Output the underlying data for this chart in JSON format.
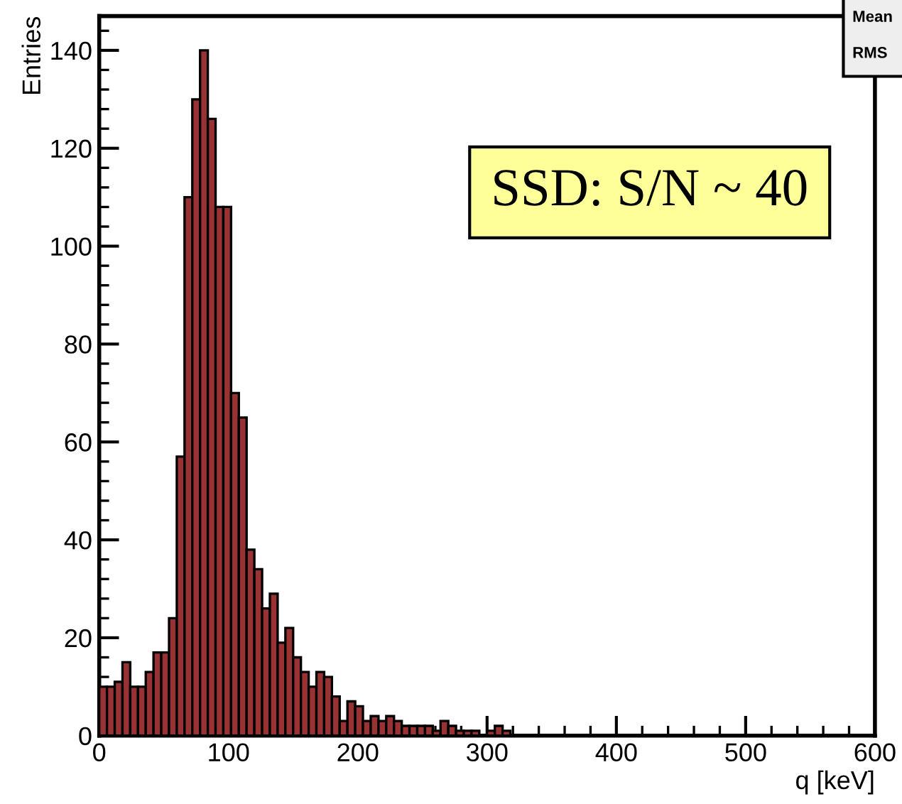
{
  "chart_data": {
    "type": "histogram",
    "xlabel": "q [keV]",
    "ylabel": "Entries",
    "bins": [
      0,
      6,
      12,
      18,
      24,
      30,
      36,
      42,
      48,
      54,
      60,
      66,
      72,
      78,
      84,
      90,
      96,
      102,
      108,
      114,
      120,
      126,
      132,
      138,
      144,
      150,
      156,
      162,
      168,
      174,
      180,
      186,
      192,
      198,
      204,
      210,
      216,
      222,
      228,
      234,
      240,
      246,
      252,
      258,
      264,
      270,
      276,
      282,
      288,
      294,
      300,
      306,
      312,
      318
    ],
    "values": [
      10,
      10,
      11,
      15,
      10,
      10,
      13,
      17,
      17,
      24,
      57,
      110,
      130,
      140,
      126,
      108,
      108,
      70,
      65,
      38,
      34,
      26,
      29,
      19,
      22,
      16,
      13,
      10,
      13,
      12,
      8,
      3,
      7,
      6,
      3,
      4,
      3,
      4,
      3,
      2,
      2,
      2,
      2,
      1,
      3,
      2,
      1,
      1,
      1,
      0,
      1,
      2,
      1
    ],
    "color": "#993333",
    "xlim": [
      0,
      600
    ],
    "xticks": [
      0,
      100,
      200,
      300,
      400,
      500,
      600
    ],
    "ylim": [
      0,
      147
    ],
    "yticks": [
      0,
      20,
      40,
      60,
      80,
      100,
      120,
      140
    ],
    "grid": false,
    "legend": false,
    "annotations": [
      "SSD: S/N ~ 40",
      "Mean",
      "RMS"
    ]
  }
}
